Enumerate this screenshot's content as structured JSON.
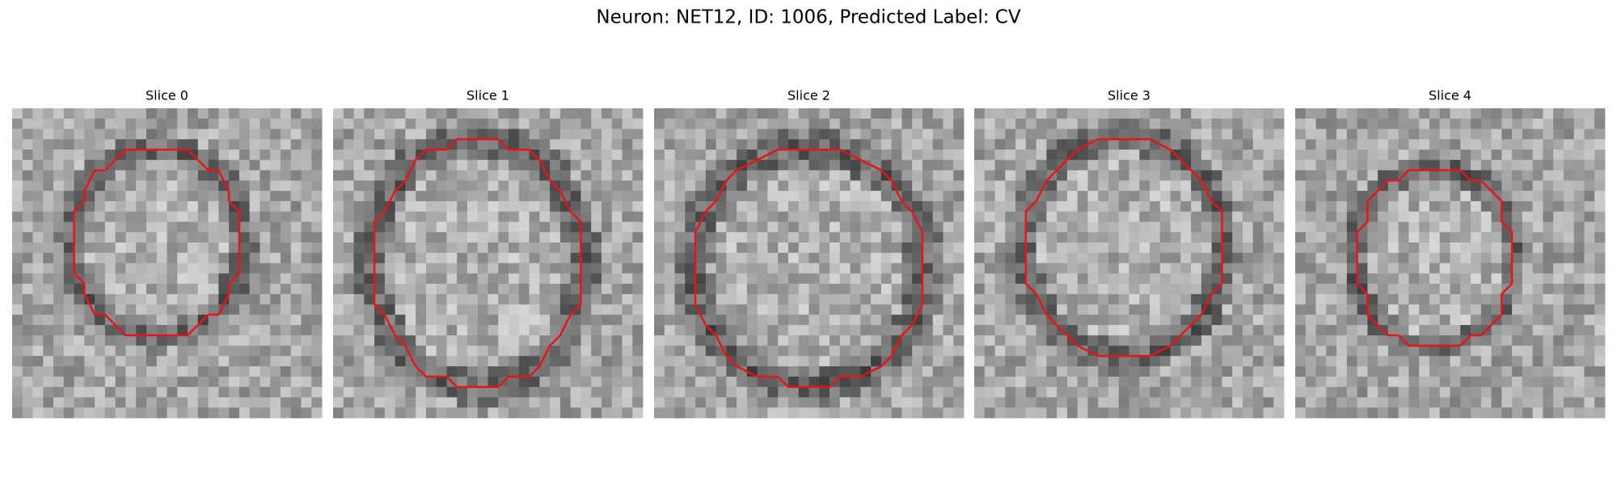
{
  "title": "Neuron: NET12, ID: 1006, Predicted Label: CV",
  "panels": [
    {
      "label": "Slice 0"
    },
    {
      "label": "Slice 1"
    },
    {
      "label": "Slice 2"
    },
    {
      "label": "Slice 3"
    },
    {
      "label": "Slice 4"
    }
  ]
}
